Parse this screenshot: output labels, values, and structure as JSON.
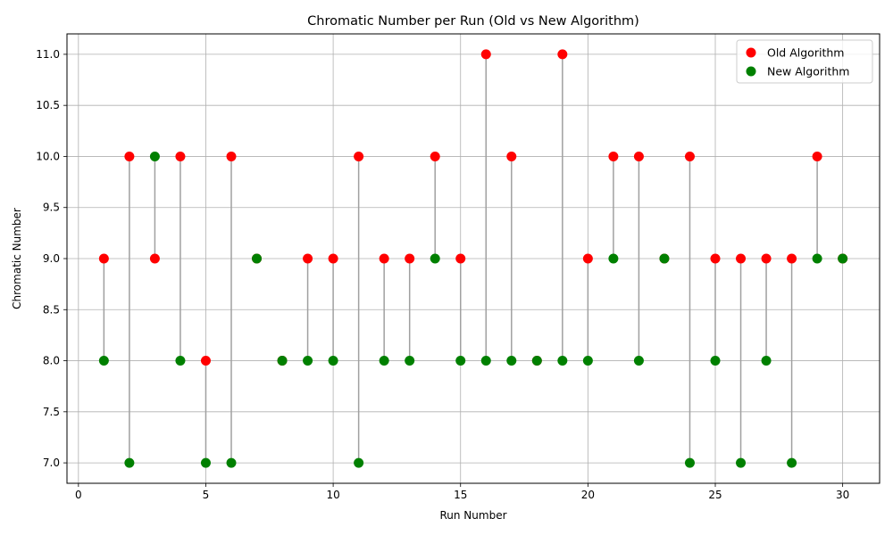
{
  "chart_data": {
    "type": "scatter",
    "title": "Chromatic Number per Run (Old vs New Algorithm)",
    "xlabel": "Run Number",
    "ylabel": "Chromatic Number",
    "xlim": [
      -0.45,
      31.45
    ],
    "ylim": [
      6.8,
      11.2
    ],
    "xticks": [
      0,
      5,
      10,
      15,
      20,
      25,
      30
    ],
    "xtick_labels": [
      "0",
      "5",
      "10",
      "15",
      "20",
      "25",
      "30"
    ],
    "yticks": [
      7.0,
      7.5,
      8.0,
      8.5,
      9.0,
      9.5,
      10.0,
      10.5,
      11.0
    ],
    "ytick_labels": [
      "7.0",
      "7.5",
      "8.0",
      "8.5",
      "9.0",
      "9.5",
      "10.0",
      "10.5",
      "11.0"
    ],
    "grid": true,
    "legend_position": "top-right",
    "x": [
      1,
      2,
      3,
      4,
      5,
      6,
      7,
      8,
      9,
      10,
      11,
      12,
      13,
      14,
      15,
      16,
      17,
      18,
      19,
      20,
      21,
      22,
      23,
      24,
      25,
      26,
      27,
      28,
      29,
      30
    ],
    "series": [
      {
        "name": "Old Algorithm",
        "color": "#ff0000",
        "values": [
          9,
          10,
          9,
          10,
          8,
          10,
          9,
          8,
          9,
          9,
          10,
          9,
          9,
          10,
          9,
          11,
          10,
          8,
          11,
          9,
          10,
          10,
          9,
          10,
          9,
          9,
          9,
          9,
          10,
          9
        ]
      },
      {
        "name": "New Algorithm",
        "color": "#008000",
        "values": [
          8,
          7,
          10,
          8,
          7,
          7,
          9,
          8,
          8,
          8,
          7,
          8,
          8,
          9,
          8,
          8,
          8,
          8,
          8,
          8,
          9,
          8,
          9,
          7,
          8,
          7,
          8,
          7,
          9,
          9
        ]
      }
    ],
    "connector_color": "#a0a0a0"
  }
}
